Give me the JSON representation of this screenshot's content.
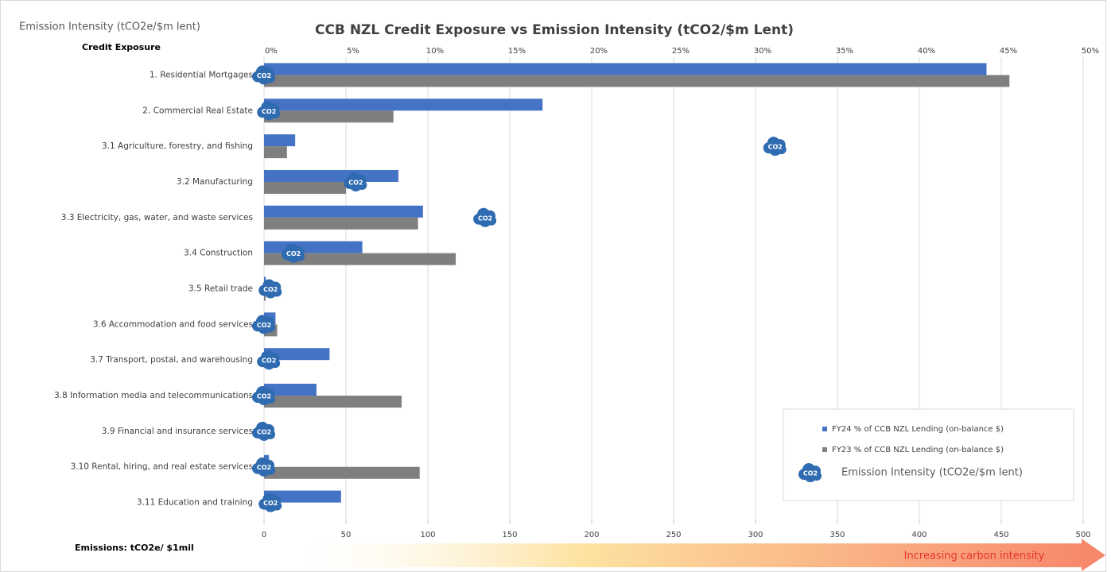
{
  "chart_data": {
    "type": "bar",
    "orientation": "horizontal",
    "title": "CCB NZL Credit Exposure vs Emission Intensity (tCO2/$m Lent)",
    "top_left_label": "Emission Intensity (tCO2e/$m lent)",
    "category_axis_label": "Credit Exposure",
    "x2_axis_label": "Emissions: tCO2e/ $1mil",
    "annotation": "Increasing carbon intensity",
    "icon_label": "CO2",
    "categories": [
      "1. Residential Mortgages",
      "2. Commercial Real Estate",
      "3.1 Agriculture, forestry, and fishing",
      "3.2 Manufacturing",
      "3.3 Electricity, gas, water, and waste services",
      "3.4 Construction",
      "3.5 Retail trade",
      "3.6 Accommodation and food services",
      "3.7 Transport, postal, and warehousing",
      "3.8 Information media and telecommunications",
      "3.9 Financial and insurance services",
      "3.10 Rental, hiring, and real estate services",
      "3.11 Education and training"
    ],
    "series": [
      {
        "name": "FY24 % of CCB NZL Lending (on-balance $)",
        "color": "#4472c4",
        "values": [
          44.1,
          17.0,
          1.9,
          8.2,
          9.7,
          6.0,
          0.1,
          0.7,
          4.0,
          3.2,
          0,
          0.3,
          4.7
        ]
      },
      {
        "name": "FY23 % of CCB NZL Lending (on-balance $)",
        "color": "#7f7f7f",
        "values": [
          45.5,
          7.9,
          1.4,
          5.0,
          9.4,
          11.7,
          0.1,
          0.8,
          0,
          8.4,
          0,
          9.5,
          0
        ]
      },
      {
        "name": "Emission Intensity (tCO2e/$m lent)",
        "type": "scatter",
        "axis": "x2",
        "color": "#2e6bb0",
        "values": [
          0,
          3,
          312,
          56,
          135,
          18,
          4,
          0,
          3,
          0,
          0,
          0,
          4
        ]
      }
    ],
    "xlim": [
      0,
      50
    ],
    "xticks": [
      {
        "value": 0,
        "label": "0%"
      },
      {
        "value": 5,
        "label": "5%"
      },
      {
        "value": 10,
        "label": "10%"
      },
      {
        "value": 15,
        "label": "15%"
      },
      {
        "value": 20,
        "label": "20%"
      },
      {
        "value": 25,
        "label": "25%"
      },
      {
        "value": 30,
        "label": "30%"
      },
      {
        "value": 35,
        "label": "35%"
      },
      {
        "value": 40,
        "label": "40%"
      },
      {
        "value": 45,
        "label": "45%"
      },
      {
        "value": 50,
        "label": "50%"
      }
    ],
    "x2lim": [
      0,
      500
    ],
    "x2ticks": [
      0,
      50,
      100,
      150,
      200,
      250,
      300,
      350,
      400,
      450,
      500
    ],
    "grid": true,
    "legend": "lower right"
  }
}
